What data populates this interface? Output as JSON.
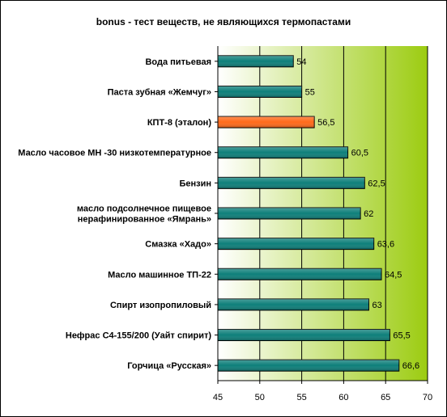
{
  "chart_data": {
    "type": "bar",
    "orientation": "horizontal",
    "title": "bonus - тест веществ, не являющихся термопастами",
    "categories": [
      [
        "Вода питьевая"
      ],
      [
        "Паста зубная «Жемчуг»"
      ],
      [
        "КПТ-8 (эталон)"
      ],
      [
        "Масло часовое МН -30 низкотемпературное"
      ],
      [
        "Бензин"
      ],
      [
        "масло подсолнечное пищевое",
        "нерафинированное «Ямрань»"
      ],
      [
        "Смазка «Хадо»"
      ],
      [
        "Масло машинное ТП-22"
      ],
      [
        "Спирт изопропиловый"
      ],
      [
        "Нефрас С4-155/200 (Уайт спирит)"
      ],
      [
        "Горчица «Русская»"
      ]
    ],
    "values": [
      54,
      55,
      56.5,
      60.5,
      62.5,
      62,
      63.6,
      64.5,
      63,
      65.5,
      66.6
    ],
    "value_labels": [
      "54",
      "55",
      "56,5",
      "60,5",
      "62,5",
      "62",
      "63,6",
      "64,5",
      "63",
      "65,5",
      "66,6"
    ],
    "highlight_index": 2,
    "xlim": [
      45,
      70
    ],
    "xticks": [
      45,
      50,
      55,
      60,
      65,
      70
    ],
    "xtick_labels": [
      "45",
      "50",
      "55",
      "60",
      "65",
      "70"
    ],
    "grid": true,
    "legend": "none",
    "xlabel": "",
    "ylabel": ""
  },
  "colors": {
    "bar": "#0e7f7a",
    "bar_highlight": "#ff6a1a",
    "plot_bg_start": "#ffffff",
    "plot_bg_end": "#9ccc11",
    "grid": "#000000",
    "text": "#000000"
  }
}
